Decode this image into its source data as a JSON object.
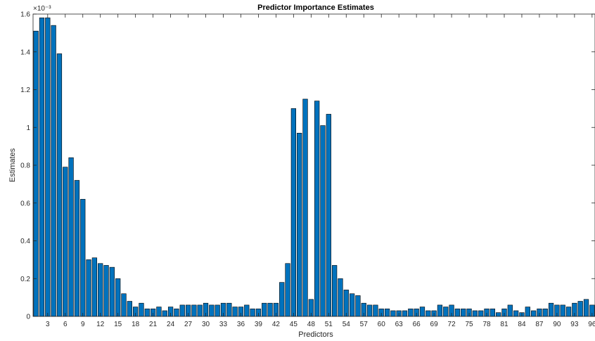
{
  "chart_data": {
    "type": "bar",
    "title": "Predictor Importance Estimates",
    "xlabel": "Predictors",
    "ylabel": "Estimates",
    "exponent_label": "×10⁻³",
    "ylim": [
      0,
      1.6
    ],
    "y_ticks": [
      "0",
      "0.2",
      "0.4",
      "0.6",
      "0.8",
      "1",
      "1.2",
      "1.4",
      "1.6"
    ],
    "x_ticks": [
      "3",
      "6",
      "9",
      "12",
      "15",
      "18",
      "21",
      "24",
      "27",
      "30",
      "33",
      "36",
      "39",
      "42",
      "45",
      "48",
      "51",
      "54",
      "57",
      "60",
      "63",
      "66",
      "69",
      "72",
      "75",
      "78",
      "81",
      "84",
      "87",
      "90",
      "93",
      "96"
    ],
    "bar_color": "#0072BD",
    "categories": [
      1,
      2,
      3,
      4,
      5,
      6,
      7,
      8,
      9,
      10,
      11,
      12,
      13,
      14,
      15,
      16,
      17,
      18,
      19,
      20,
      21,
      22,
      23,
      24,
      25,
      26,
      27,
      28,
      29,
      30,
      31,
      32,
      33,
      34,
      35,
      36,
      37,
      38,
      39,
      40,
      41,
      42,
      43,
      44,
      45,
      46,
      47,
      48,
      49,
      50,
      51,
      52,
      53,
      54,
      55,
      56,
      57,
      58,
      59,
      60,
      61,
      62,
      63,
      64,
      65,
      66,
      67,
      68,
      69,
      70,
      71,
      72,
      73,
      74,
      75,
      76,
      77,
      78,
      79,
      80,
      81,
      82,
      83,
      84,
      85,
      86,
      87,
      88,
      89,
      90,
      91,
      92,
      93,
      94,
      95,
      96
    ],
    "values": [
      1.51,
      1.58,
      1.58,
      1.54,
      1.39,
      0.79,
      0.84,
      0.72,
      0.62,
      0.3,
      0.31,
      0.28,
      0.27,
      0.26,
      0.2,
      0.12,
      0.08,
      0.05,
      0.07,
      0.04,
      0.04,
      0.05,
      0.03,
      0.05,
      0.04,
      0.06,
      0.06,
      0.06,
      0.06,
      0.07,
      0.06,
      0.06,
      0.07,
      0.07,
      0.05,
      0.05,
      0.06,
      0.04,
      0.04,
      0.07,
      0.07,
      0.07,
      0.18,
      0.28,
      1.1,
      0.97,
      1.15,
      0.09,
      1.14,
      1.01,
      1.07,
      0.27,
      0.2,
      0.14,
      0.12,
      0.11,
      0.07,
      0.06,
      0.06,
      0.04,
      0.04,
      0.03,
      0.03,
      0.03,
      0.04,
      0.04,
      0.05,
      0.03,
      0.03,
      0.06,
      0.05,
      0.06,
      0.04,
      0.04,
      0.04,
      0.03,
      0.03,
      0.04,
      0.04,
      0.02,
      0.04,
      0.06,
      0.03,
      0.02,
      0.05,
      0.03,
      0.04,
      0.04,
      0.07,
      0.06,
      0.06,
      0.05,
      0.07,
      0.08,
      0.09,
      0.06
    ]
  }
}
